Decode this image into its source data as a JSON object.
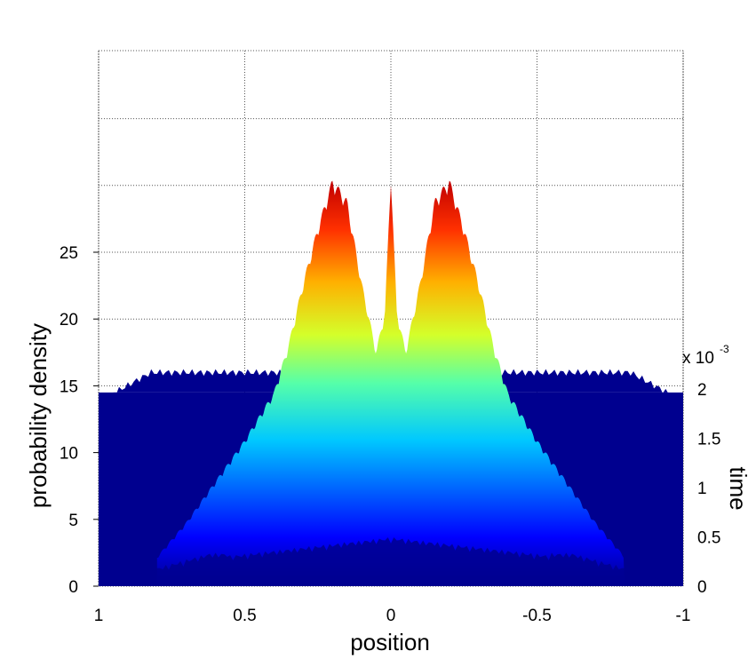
{
  "chart_data": {
    "type": "surface",
    "colormap": "jet",
    "grid": true,
    "xlabel": "position",
    "ylabel": "time",
    "zlabel": "probability density",
    "x_range": [
      1,
      -1
    ],
    "x_ticks": [
      "1",
      "0.5",
      "0",
      "-0.5",
      "-1"
    ],
    "y_range": [
      0,
      0.002
    ],
    "y_ticks": [
      "0",
      "0.5",
      "1",
      "1.5",
      "2"
    ],
    "y_exponent_label": "x 10",
    "y_exponent_power": "-3",
    "z_range": [
      0,
      35
    ],
    "z_ticks": [
      "0",
      "5",
      "10",
      "15",
      "20",
      "25"
    ],
    "z_tick_values": [
      0,
      5,
      10,
      15,
      20,
      25
    ],
    "colors": {
      "low": "#00008f",
      "high": "#cc0000"
    },
    "profile_at_t_max": {
      "position": [
        1.0,
        0.9,
        0.8,
        0.7,
        0.6,
        0.5,
        0.4,
        0.35,
        0.3,
        0.25,
        0.2,
        0.15,
        0.1,
        0.05,
        0.02,
        0.0,
        -0.02,
        -0.05,
        -0.1,
        -0.15,
        -0.2,
        -0.25,
        -0.3,
        -0.35,
        -0.4,
        -0.5,
        -0.6,
        -0.7,
        -0.8,
        -0.9,
        -1.0
      ],
      "density": [
        0.0,
        0.5,
        2.0,
        4.5,
        7.5,
        10.5,
        14.0,
        17.5,
        22.0,
        26.0,
        29.5,
        28.0,
        22.0,
        17.0,
        20.0,
        30.0,
        20.0,
        17.0,
        22.0,
        28.0,
        29.5,
        26.0,
        22.0,
        17.5,
        14.0,
        10.5,
        7.5,
        4.5,
        2.0,
        0.5,
        0.0
      ]
    },
    "plateau_density": 14.5
  }
}
